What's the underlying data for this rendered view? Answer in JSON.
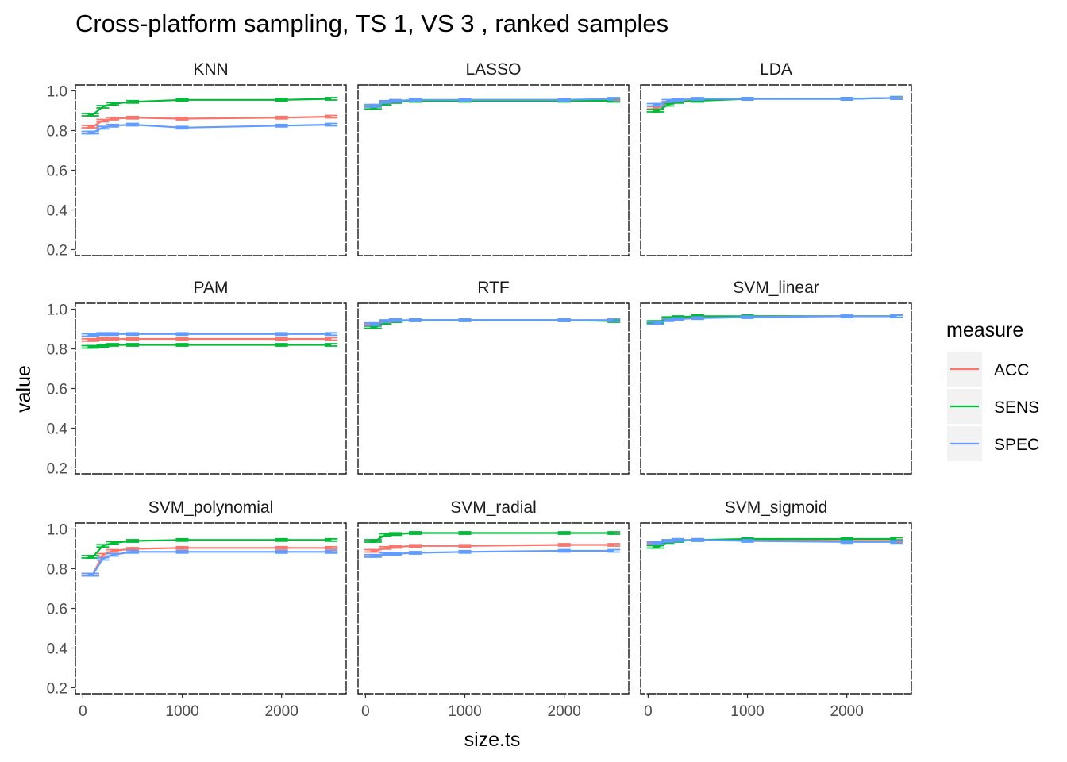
{
  "chart_data": {
    "type": "line",
    "title": "Cross-platform sampling, TS 1, VS 3 , ranked samples",
    "xlabel": "size.ts",
    "ylabel": "value",
    "xlim": [
      -75,
      2650
    ],
    "ylim": [
      0.17,
      1.03
    ],
    "xticks": [
      0,
      1000,
      2000
    ],
    "yticks": [
      0.2,
      0.4,
      0.6,
      0.8,
      1.0
    ],
    "ytick_labels": [
      "0.2",
      "0.4",
      "0.6",
      "0.8",
      "1.0"
    ],
    "x": [
      50,
      100,
      200,
      300,
      500,
      1000,
      2000,
      2500
    ],
    "legend": {
      "title": "measure",
      "placement": "right",
      "items": [
        {
          "name": "ACC",
          "color": "#F8766D"
        },
        {
          "name": "SENS",
          "color": "#00BA38"
        },
        {
          "name": "SPEC",
          "color": "#619CFF"
        }
      ]
    },
    "panels": [
      {
        "name": "KNN",
        "series": [
          {
            "name": "ACC",
            "values": [
              0.82,
              0.82,
              0.85,
              0.86,
              0.865,
              0.86,
              0.865,
              0.87
            ]
          },
          {
            "name": "SENS",
            "values": [
              0.88,
              0.88,
              0.92,
              0.935,
              0.945,
              0.955,
              0.955,
              0.96
            ]
          },
          {
            "name": "SPEC",
            "values": [
              0.79,
              0.79,
              0.815,
              0.825,
              0.83,
              0.815,
              0.825,
              0.83
            ]
          }
        ]
      },
      {
        "name": "LASSO",
        "series": [
          {
            "name": "ACC",
            "values": [
              0.925,
              0.925,
              0.94,
              0.945,
              0.95,
              0.955,
              0.955,
              0.955
            ]
          },
          {
            "name": "SENS",
            "values": [
              0.915,
              0.915,
              0.935,
              0.945,
              0.95,
              0.95,
              0.95,
              0.95
            ]
          },
          {
            "name": "SPEC",
            "values": [
              0.925,
              0.925,
              0.945,
              0.95,
              0.955,
              0.955,
              0.955,
              0.96
            ]
          }
        ]
      },
      {
        "name": "LDA",
        "series": [
          {
            "name": "ACC",
            "values": [
              0.915,
              0.915,
              0.94,
              0.95,
              0.955,
              0.96,
              0.96,
              0.965
            ]
          },
          {
            "name": "SENS",
            "values": [
              0.9,
              0.9,
              0.93,
              0.945,
              0.95,
              0.96,
              0.96,
              0.965
            ]
          },
          {
            "name": "SPEC",
            "values": [
              0.93,
              0.93,
              0.95,
              0.955,
              0.96,
              0.96,
              0.96,
              0.965
            ]
          }
        ]
      },
      {
        "name": "PAM",
        "series": [
          {
            "name": "ACC",
            "values": [
              0.845,
              0.845,
              0.85,
              0.85,
              0.85,
              0.85,
              0.85,
              0.85
            ]
          },
          {
            "name": "SENS",
            "values": [
              0.81,
              0.81,
              0.815,
              0.82,
              0.82,
              0.82,
              0.82,
              0.82
            ]
          },
          {
            "name": "SPEC",
            "values": [
              0.87,
              0.87,
              0.875,
              0.875,
              0.875,
              0.875,
              0.875,
              0.875
            ]
          }
        ]
      },
      {
        "name": "RTF",
        "series": [
          {
            "name": "ACC",
            "values": [
              0.92,
              0.92,
              0.935,
              0.94,
              0.945,
              0.945,
              0.945,
              0.945
            ]
          },
          {
            "name": "SENS",
            "values": [
              0.91,
              0.91,
              0.93,
              0.94,
              0.945,
              0.945,
              0.945,
              0.94
            ]
          },
          {
            "name": "SPEC",
            "values": [
              0.925,
              0.925,
              0.94,
              0.945,
              0.945,
              0.945,
              0.945,
              0.945
            ]
          }
        ]
      },
      {
        "name": "SVM_linear",
        "series": [
          {
            "name": "ACC",
            "values": [
              0.935,
              0.935,
              0.95,
              0.955,
              0.96,
              0.965,
              0.965,
              0.965
            ]
          },
          {
            "name": "SENS",
            "values": [
              0.935,
              0.935,
              0.955,
              0.96,
              0.965,
              0.965,
              0.965,
              0.965
            ]
          },
          {
            "name": "SPEC",
            "values": [
              0.93,
              0.93,
              0.945,
              0.95,
              0.955,
              0.96,
              0.965,
              0.965
            ]
          }
        ]
      },
      {
        "name": "SVM_polynomial",
        "series": [
          {
            "name": "ACC",
            "values": [
              0.77,
              0.77,
              0.87,
              0.89,
              0.9,
              0.905,
              0.905,
              0.905
            ]
          },
          {
            "name": "SENS",
            "values": [
              0.86,
              0.86,
              0.915,
              0.93,
              0.94,
              0.945,
              0.945,
              0.945
            ]
          },
          {
            "name": "SPEC",
            "values": [
              0.77,
              0.77,
              0.85,
              0.87,
              0.885,
              0.885,
              0.885,
              0.885
            ]
          }
        ]
      },
      {
        "name": "SVM_radial",
        "series": [
          {
            "name": "ACC",
            "values": [
              0.89,
              0.89,
              0.905,
              0.91,
              0.915,
              0.915,
              0.92,
              0.92
            ]
          },
          {
            "name": "SENS",
            "values": [
              0.94,
              0.94,
              0.97,
              0.975,
              0.98,
              0.98,
              0.98,
              0.98
            ]
          },
          {
            "name": "SPEC",
            "values": [
              0.865,
              0.865,
              0.875,
              0.875,
              0.88,
              0.885,
              0.89,
              0.89
            ]
          }
        ]
      },
      {
        "name": "SVM_sigmoid",
        "series": [
          {
            "name": "ACC",
            "values": [
              0.925,
              0.925,
              0.94,
              0.945,
              0.945,
              0.945,
              0.94,
              0.94
            ]
          },
          {
            "name": "SENS",
            "values": [
              0.91,
              0.91,
              0.935,
              0.94,
              0.945,
              0.95,
              0.95,
              0.95
            ]
          },
          {
            "name": "SPEC",
            "values": [
              0.93,
              0.93,
              0.94,
              0.945,
              0.945,
              0.94,
              0.935,
              0.935
            ]
          }
        ]
      }
    ]
  }
}
